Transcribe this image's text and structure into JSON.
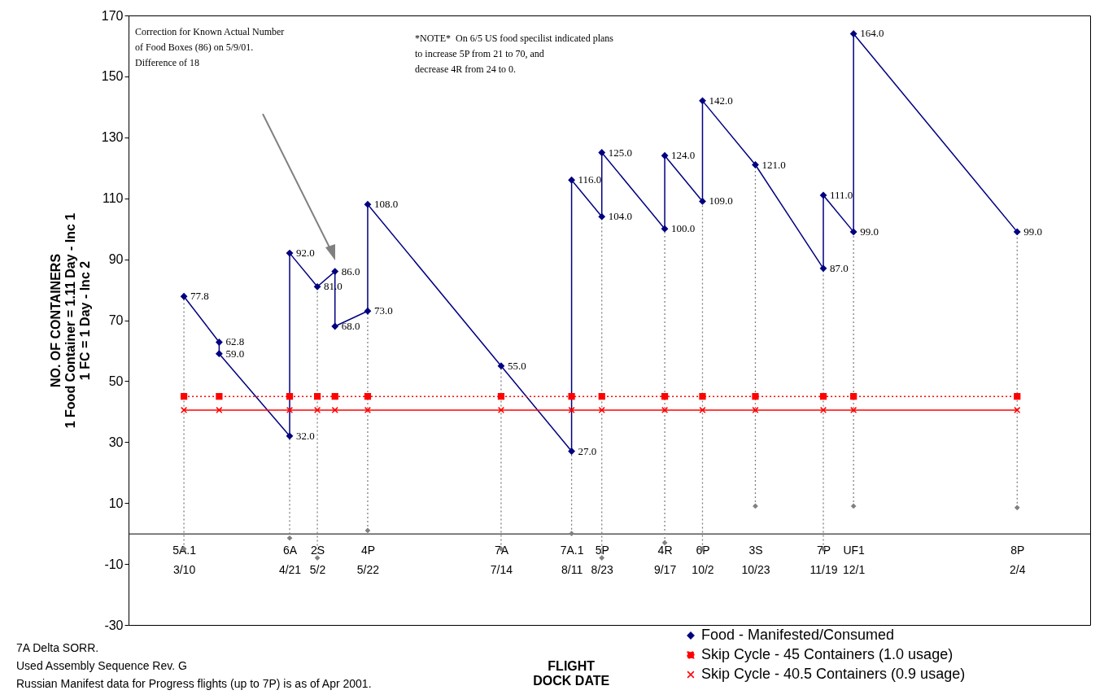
{
  "chart_data": {
    "type": "line",
    "xlabel": "FLIGHT\nDOCK DATE",
    "ylabel": "NO. OF CONTAINERS\n1 Food Container = 1.11 Day - Inc 1\n1 FC = 1 Day - Inc 2",
    "xlim": [
      "2001-02-16",
      "2002-03-05"
    ],
    "ylim": [
      -30,
      170
    ],
    "yticks": [
      -30,
      -10,
      10,
      30,
      50,
      70,
      90,
      110,
      130,
      150,
      170
    ],
    "grid": false,
    "legend": "bottom right",
    "xticks": [
      {
        "value": "2001-03-10",
        "label": "5A.1\n3/10"
      },
      {
        "value": "2001-04-21",
        "label": "6A\n4/21"
      },
      {
        "value": "2001-05-02",
        "label": "2S\n5/2"
      },
      {
        "value": "2001-05-22",
        "label": "4P\n5/22"
      },
      {
        "value": "2001-07-14",
        "label": "7A\n7/14"
      },
      {
        "value": "2001-08-11",
        "label": "7A.1\n8/11"
      },
      {
        "value": "2001-08-23",
        "label": "5P\n8/23"
      },
      {
        "value": "2001-09-17",
        "label": "4R\n9/17"
      },
      {
        "value": "2001-10-02",
        "label": "6P\n10/2"
      },
      {
        "value": "2001-10-23",
        "label": "3S\n10/23"
      },
      {
        "value": "2001-11-19",
        "label": "7P\n11/19"
      },
      {
        "value": "2001-12-01",
        "label": "UF1\n12/1"
      },
      {
        "value": "2002-02-04",
        "label": "8P\n2/4"
      }
    ],
    "series": [
      {
        "name": "Food - Manifested/Consumed",
        "color": "#000080",
        "marker": "diamond",
        "line_style": "solid",
        "x": [
          "2001-03-10",
          "2001-03-24",
          "2001-03-24",
          "2001-04-21",
          "2001-04-21",
          "2001-05-02",
          "2001-05-09",
          "2001-05-09",
          "2001-05-22",
          "2001-05-22",
          "2001-07-14",
          "2001-08-11",
          "2001-08-11",
          "2001-08-23",
          "2001-08-23",
          "2001-09-17",
          "2001-09-17",
          "2001-10-02",
          "2001-10-02",
          "2001-10-23",
          "2001-11-19",
          "2001-11-19",
          "2001-12-01",
          "2001-12-01",
          "2002-02-04"
        ],
        "values": [
          77.8,
          62.8,
          59,
          32,
          92,
          81,
          86,
          68,
          73,
          108,
          55,
          27,
          116,
          104,
          125,
          100,
          124,
          109,
          142,
          121,
          87,
          111,
          99,
          164,
          99
        ],
        "value_labels": [
          "77.8",
          "62.8",
          "59.0",
          "32.0",
          "92.0",
          "81.0",
          "86.0",
          "68.0",
          "73.0",
          "108.0",
          "55.0",
          "27.0",
          "116.0",
          "104.0",
          "125.0",
          "100.0",
          "124.0",
          "109.0",
          "142.0",
          "121.0",
          "87.0",
          "111.0",
          "99.0",
          "164.0",
          "99.0"
        ]
      },
      {
        "name": "Skip Cycle - 45 Containers (1.0 usage)",
        "color": "#ff0000",
        "marker": "square",
        "line_style": "dotted",
        "x": [
          "2001-03-10",
          "2001-03-24",
          "2001-04-21",
          "2001-05-02",
          "2001-05-09",
          "2001-05-22",
          "2001-07-14",
          "2001-08-11",
          "2001-08-23",
          "2001-09-17",
          "2001-10-02",
          "2001-10-23",
          "2001-11-19",
          "2001-12-01",
          "2002-02-04"
        ],
        "values": [
          45,
          45,
          45,
          45,
          45,
          45,
          45,
          45,
          45,
          45,
          45,
          45,
          45,
          45,
          45
        ]
      },
      {
        "name": "Skip Cycle - 40.5 Containers (0.9 usage)",
        "color": "#ff0000",
        "marker": "cross",
        "line_style": "solid",
        "x": [
          "2001-03-10",
          "2001-03-24",
          "2001-04-21",
          "2001-05-02",
          "2001-05-09",
          "2001-05-22",
          "2001-07-14",
          "2001-08-11",
          "2001-08-23",
          "2001-09-17",
          "2001-10-02",
          "2001-10-23",
          "2001-11-19",
          "2001-12-01",
          "2002-02-04"
        ],
        "values": [
          40.5,
          40.5,
          40.5,
          40.5,
          40.5,
          40.5,
          40.5,
          40.5,
          40.5,
          40.5,
          40.5,
          40.5,
          40.5,
          40.5,
          40.5
        ]
      },
      {
        "type": "scatter",
        "color": "#808080",
        "marker": "diamond",
        "x": [
          "2001-03-10",
          "2001-04-21",
          "2001-05-02",
          "2001-05-22",
          "2001-07-14",
          "2001-08-11",
          "2001-08-23",
          "2001-09-17",
          "2001-10-02",
          "2001-10-23",
          "2001-11-19",
          "2001-12-01",
          "2002-02-04"
        ],
        "values": [
          -5,
          -1.5,
          -8,
          1,
          -5,
          0,
          -8,
          -3,
          -5,
          9,
          -5,
          9,
          8.5
        ]
      }
    ],
    "annotations": [
      "Correction for Known Actual Number\nof Food Boxes (86) on 5/9/01.\nDifference of 18",
      "*NOTE*  On 6/5 US food specilist indicated plans\nto increase 5P from 21 to 70, and\ndecrease 4R from 24 to 0.",
      "7A Delta SORR.\nUsed Assembly Sequence Rev. G\nRussian Manifest data for Progress flights (up to 7P) is as of Apr 2001."
    ]
  }
}
